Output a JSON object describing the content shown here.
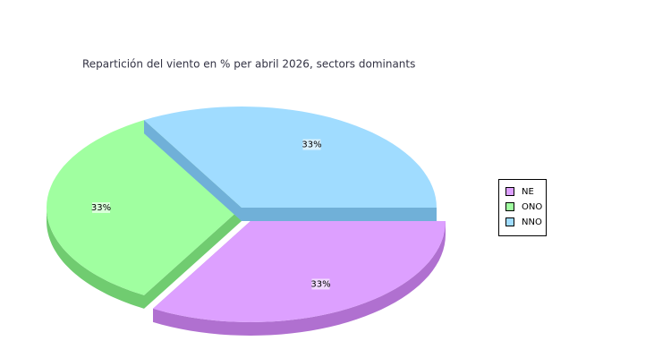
{
  "chart_data": {
    "type": "pie3d",
    "title": "Repartición del viento en % per abril 2026, sectors dominants",
    "categories": [
      "NE",
      "ONO",
      "NNO"
    ],
    "values": [
      33,
      33,
      33
    ],
    "value_labels": [
      "33%",
      "33%",
      "33%"
    ],
    "colors": [
      "#dda0ff",
      "#a0ffa0",
      "#a0dcff"
    ],
    "side_colors": [
      "#b070d0",
      "#70cc70",
      "#70b0d8"
    ],
    "exploded": [
      true,
      false,
      false
    ],
    "legend": "right"
  }
}
